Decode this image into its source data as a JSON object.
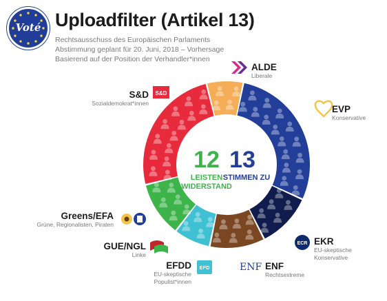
{
  "logo": {
    "text": "Voté"
  },
  "header": {
    "title": "Uploadfilter (Artikel 13)",
    "subtitle_1": "Rechtsausschuss des Europäischen Parlaments",
    "subtitle_2": "Abstimmung geplant für 20. Juni, 2018 – Vorhersage",
    "subtitle_3": "Basierend auf der Position der Verhandler*innen"
  },
  "chart_data": {
    "type": "pie",
    "style": "donut",
    "total_seats": 25,
    "segments": [
      {
        "party": "ALDE",
        "value": 2,
        "color": "#f5ad57",
        "side": "for"
      },
      {
        "party": "EVP",
        "value": 8,
        "color": "#233e98",
        "side": "for"
      },
      {
        "party": "EKR",
        "value": 3,
        "color": "#101c4e",
        "side": "for"
      },
      {
        "party": "ENF",
        "value": 3,
        "color": "#7b4722",
        "side": "for"
      },
      {
        "party": "EFDD",
        "value": 2,
        "color": "#3fc0d3",
        "side": "against"
      },
      {
        "party": "Greens/EFA",
        "value": 3,
        "color": "#3db44a",
        "side": "against"
      },
      {
        "party": "S&D",
        "value": 7,
        "color": "#e72b3c",
        "side": "against"
      }
    ],
    "against": {
      "count": "12",
      "label_1": "LEISTEN",
      "label_2": "WIDERSTAND",
      "color": "#3db44a"
    },
    "for": {
      "count": "13",
      "label_1": "STIMMEN ZU",
      "color": "#233e98"
    }
  },
  "parties": {
    "alde": {
      "name": "ALDE",
      "desc": "Liberale"
    },
    "evp": {
      "name": "EVP",
      "desc": "Konservative"
    },
    "ekr": {
      "name": "EKR",
      "desc_1": "EU-skeptische",
      "desc_2": "Konservative",
      "badge": "ECR"
    },
    "enf": {
      "name": "ENF",
      "desc": "Rechtsextreme",
      "badge": "ENF"
    },
    "efdd": {
      "name": "EFDD",
      "desc_1": "EU-skeptische",
      "desc_2": "Populist*innen",
      "badge": "EFD"
    },
    "gue": {
      "name": "GUE/NGL",
      "desc": "Linke"
    },
    "greens": {
      "name": "Greens/EFA",
      "desc": "Grüne, Regionalisten, Piraten"
    },
    "sd": {
      "name": "S&D",
      "desc": "Sozialdemokrat*innen",
      "badge": "S&D"
    }
  },
  "colors": {
    "alde_icon": "#d62b8f",
    "evp_icon": "#f2c64b",
    "gue_icon": "#c0262d"
  }
}
